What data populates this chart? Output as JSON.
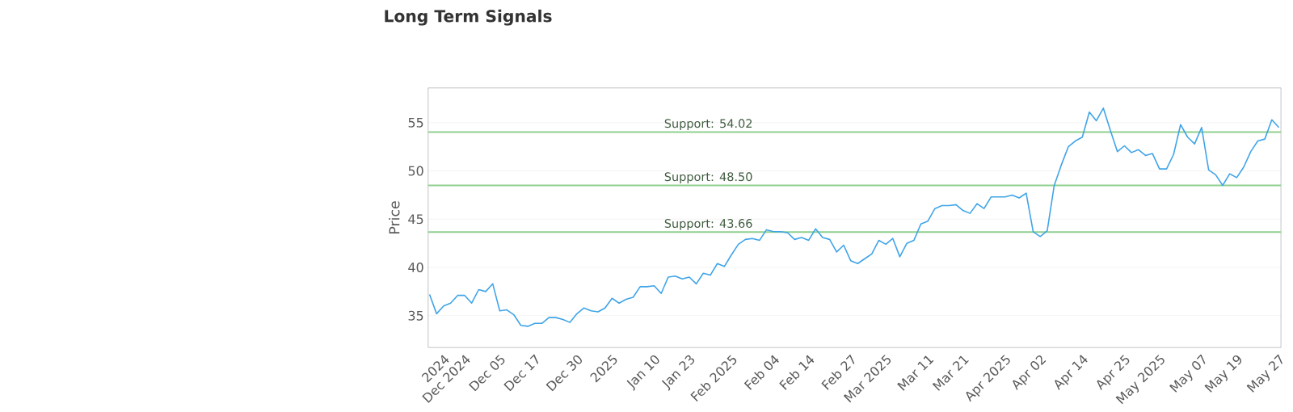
{
  "chart_data": {
    "type": "line",
    "title": "Long Term Signals",
    "ylabel": "Price",
    "categories": [
      null,
      null,
      "2024",
      null,
      null,
      "Dec 2024",
      null,
      null,
      null,
      null,
      "Dec 05",
      null,
      null,
      null,
      null,
      "Dec 17",
      null,
      null,
      null,
      null,
      null,
      "Dec 30",
      null,
      null,
      null,
      null,
      "2025",
      null,
      null,
      null,
      null,
      null,
      "Jan 10",
      null,
      null,
      null,
      null,
      "Jan 23",
      null,
      null,
      null,
      null,
      null,
      "Feb 2025",
      null,
      null,
      null,
      null,
      null,
      "Feb 04",
      null,
      null,
      null,
      null,
      "Feb 14",
      null,
      null,
      null,
      null,
      null,
      "Feb 27",
      null,
      null,
      null,
      null,
      "Mar 2025",
      null,
      null,
      null,
      null,
      null,
      "Mar 11",
      null,
      null,
      null,
      null,
      "Mar 21",
      null,
      null,
      null,
      null,
      null,
      "Apr 2025",
      null,
      null,
      null,
      null,
      "Apr 02",
      null,
      null,
      null,
      null,
      null,
      "Apr 14",
      null,
      null,
      null,
      null,
      null,
      "Apr 25",
      null,
      null,
      null,
      null,
      "May 2025",
      null,
      null,
      null,
      null,
      null,
      "May 07",
      null,
      null,
      null,
      null,
      "May 19",
      null,
      null,
      null,
      null,
      null,
      "May 27"
    ],
    "ylim": [
      31.7,
      58.6
    ],
    "yticks": [
      35,
      40,
      45,
      50,
      55
    ],
    "grid": "y",
    "marker": "none",
    "line_style": "solid",
    "series": [
      {
        "color": "#3fa4e8",
        "values": [
          37.2,
          35.2,
          36.0,
          36.3,
          37.1,
          37.1,
          36.3,
          37.7,
          37.5,
          38.3,
          35.5,
          35.6,
          35.1,
          34.0,
          33.9,
          34.2,
          34.2,
          34.8,
          34.8,
          34.6,
          34.3,
          35.2,
          35.8,
          35.5,
          35.4,
          35.8,
          36.8,
          36.3,
          36.7,
          36.9,
          38.0,
          38.0,
          38.1,
          37.3,
          39.0,
          39.1,
          38.8,
          39.0,
          38.3,
          39.4,
          39.2,
          40.4,
          40.1,
          41.3,
          42.4,
          42.9,
          43.0,
          42.8,
          43.9,
          43.7,
          43.7,
          43.6,
          42.9,
          43.1,
          42.8,
          44.0,
          43.1,
          42.9,
          41.6,
          42.3,
          40.7,
          40.4,
          40.9,
          41.4,
          42.8,
          42.4,
          43.0,
          41.1,
          42.5,
          42.8,
          44.5,
          44.8,
          46.1,
          46.4,
          46.4,
          46.5,
          45.9,
          45.6,
          46.6,
          46.1,
          47.3,
          47.3,
          47.3,
          47.5,
          47.2,
          47.7,
          43.7,
          43.2,
          43.8,
          48.5,
          50.6,
          52.5,
          53.1,
          53.5,
          56.1,
          55.2,
          56.5,
          54.2,
          52.0,
          52.6,
          51.9,
          52.2,
          51.6,
          51.8,
          50.2,
          50.2,
          51.7,
          54.8,
          53.5,
          52.8,
          54.5,
          50.1,
          49.6,
          48.5,
          49.7,
          49.3,
          50.4,
          52.0,
          53.1,
          53.3,
          55.3,
          54.5
        ]
      }
    ],
    "ref_lines": [
      {
        "axis": "y",
        "value": 54.02,
        "label": "Support: 54.02",
        "color": "#8fcf8f"
      },
      {
        "axis": "y",
        "value": 48.5,
        "label": "Support: 48.50",
        "color": "#8fcf8f"
      },
      {
        "axis": "y",
        "value": 43.66,
        "label": "Support: 43.66",
        "color": "#8fcf8f"
      }
    ]
  }
}
